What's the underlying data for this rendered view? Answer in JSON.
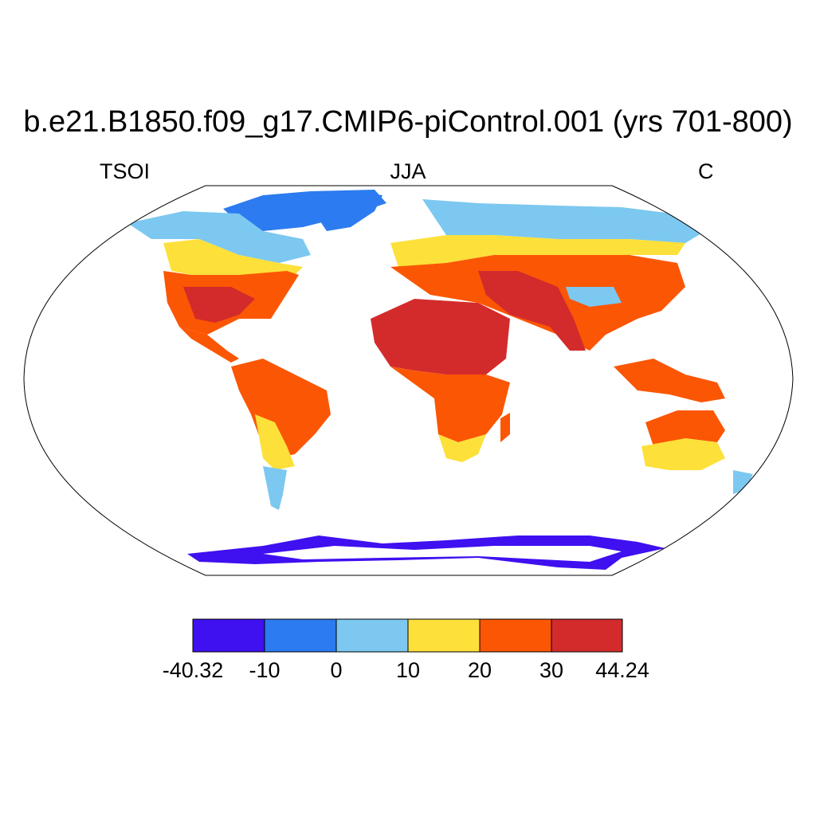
{
  "title": "b.e21.B1850.f09_g17.CMIP6-piControl.001 (yrs 701-800)",
  "left_label": "TSOI",
  "center_label": "JJA",
  "right_label": "C",
  "colorbar": {
    "labels": [
      "-40.32",
      "-10",
      "0",
      "10",
      "20",
      "30",
      "44.24"
    ],
    "colors": [
      "#3f10f0",
      "#2c7bf0",
      "#7cc8f0",
      "#fde03a",
      "#fb5604",
      "#d32b2b"
    ]
  },
  "map": {
    "projection": "Robinson",
    "ocean_color": "#ffffff",
    "outline_color": "#000000"
  }
}
